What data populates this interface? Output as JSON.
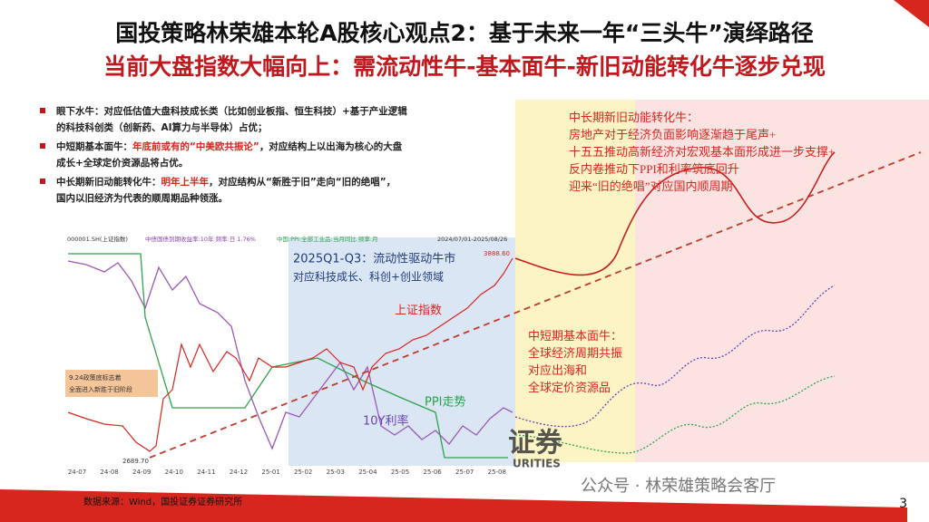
{
  "header": {
    "title": "国投策略林荣雄本轮A股核心观点2：基于未来一年“三头牛”演绎路径",
    "subtitle": "当前大盘指数大幅向上：需流动性牛-基本面牛-新旧动能转化牛逐步兑现"
  },
  "bullets": [
    {
      "label": "眼下水牛：",
      "lines": [
        "对应低估值大盘科技成长类（比如创业板指、恒生科技）+基于产业逻辑",
        "的科技科创类（创新药、AI算力与半导体）占优；"
      ]
    },
    {
      "label": "中短期基本面牛：",
      "highlight": "年底前或有的“中美欧共振论”",
      "lines": [
        "，对应结构上以出海为核心的大盘",
        "成长+全球定价资源品将占优。"
      ]
    },
    {
      "label": "中长期新旧动能转化牛：",
      "highlight": "明年上半年",
      "lines": [
        "，对应结构从“新胜于旧”走向“旧的绝唱”，",
        "国内以旧经济为代表的顺周期品种领涨。"
      ]
    }
  ],
  "chart": {
    "legend": [
      "000001.SH(上证指数)",
      "中债国债到期收益率:10年 频率:日 1.76%",
      "中国:PPI:全部工业品:当月同比 频率:月",
      "2024/07/01-2025/08/26"
    ],
    "max_label": "3888.60",
    "min_label": "2689.70",
    "x_labels": [
      "24-07",
      "24-08",
      "24-09",
      "24-10",
      "24-11",
      "24-12",
      "25-01",
      "25-02",
      "25-03",
      "25-04",
      "25-05",
      "25-06",
      "25-07",
      "25-08"
    ],
    "policy_note": [
      "9.24政策底标志着",
      "全面进入新胜于旧阶段"
    ],
    "liquidity_note": [
      "2025Q1-Q3：流动性驱动牛市",
      "对应科技成长、科创+创业领域"
    ],
    "index_label": "上证指数",
    "ppi_label": "PPI走势",
    "rate_label": "10Y利率",
    "watermark": [
      "证券",
      "URITIES"
    ]
  },
  "right_panel": {
    "long_term": [
      "中长期新旧动能转化牛：",
      "房地产对于经济负面影响逐渐趋于尾声+",
      "十五五推动高新经济对宏观基本面形成进一步支撑+",
      "反内卷推动下PPI和利率筑底回升",
      "迎来“旧的绝唱”对应国内顺周期"
    ],
    "mid_term": [
      "中短期基本面牛：",
      "全球经济周期共振",
      "对应出海和",
      "全球定价资源品"
    ]
  },
  "footer": {
    "source": "数据来源：Wind，国投证券证券研究所",
    "watermark": "公众号 · 林荣雄策略会客厅",
    "page": "3"
  }
}
